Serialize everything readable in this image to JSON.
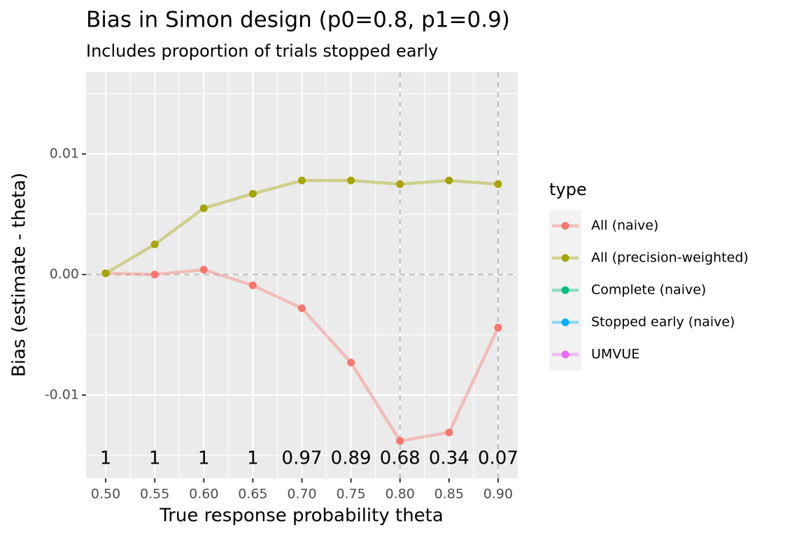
{
  "chart_data": {
    "type": "line",
    "title": "Bias in Simon design (p0=0.8, p1=0.9)",
    "subtitle": "Includes proportion of trials stopped early",
    "x_label": "True response probability theta",
    "y_label": "Bias (estimate - theta)",
    "legend_title": "type",
    "x": [
      0.5,
      0.55,
      0.6,
      0.65,
      0.7,
      0.75,
      0.8,
      0.85,
      0.9
    ],
    "series": [
      {
        "name": "All (naive)",
        "color": "#F8766D",
        "values": [
          0.0001,
          0.0,
          0.0004,
          -0.0009,
          -0.0028,
          -0.0073,
          -0.0138,
          -0.0131,
          -0.0044
        ]
      },
      {
        "name": "All (precision-weighted)",
        "color": "#A3A500",
        "values": [
          0.0001,
          0.0025,
          0.0055,
          0.0067,
          0.0078,
          0.0078,
          0.0075,
          0.0078,
          0.0075
        ]
      },
      {
        "name": "Complete (naive)",
        "color": "#00BF7D",
        "values": [
          null,
          null,
          null,
          null,
          null,
          null,
          null,
          null,
          null
        ]
      },
      {
        "name": "Stopped early (naive)",
        "color": "#00B0F6",
        "values": [
          null,
          null,
          null,
          null,
          null,
          null,
          null,
          null,
          null
        ]
      },
      {
        "name": "UMVUE",
        "color": "#E76BF3",
        "values": [
          null,
          null,
          null,
          null,
          null,
          null,
          null,
          null,
          null
        ]
      }
    ],
    "proportion_labels": [
      1,
      1,
      1,
      1,
      0.97,
      0.89,
      0.68,
      0.34,
      0.07
    ],
    "vlines": [
      0.8,
      0.9
    ],
    "hline": 0,
    "xlim": [
      0.48,
      0.92
    ],
    "ylim": [
      -0.0169,
      0.0168
    ],
    "xticks": [
      {
        "value": 0.5,
        "label": "0.50"
      },
      0.55,
      {
        "value": 0.6,
        "label": "0.60"
      },
      0.65,
      {
        "value": 0.7,
        "label": "0.70"
      },
      0.75,
      {
        "value": 0.8,
        "label": "0.80"
      },
      0.85,
      {
        "value": 0.9,
        "label": "0.90"
      }
    ],
    "yticks": [
      -0.01,
      {
        "value": 0,
        "label": "0.00"
      },
      0.01
    ],
    "grid": true,
    "legend_position": "right"
  }
}
